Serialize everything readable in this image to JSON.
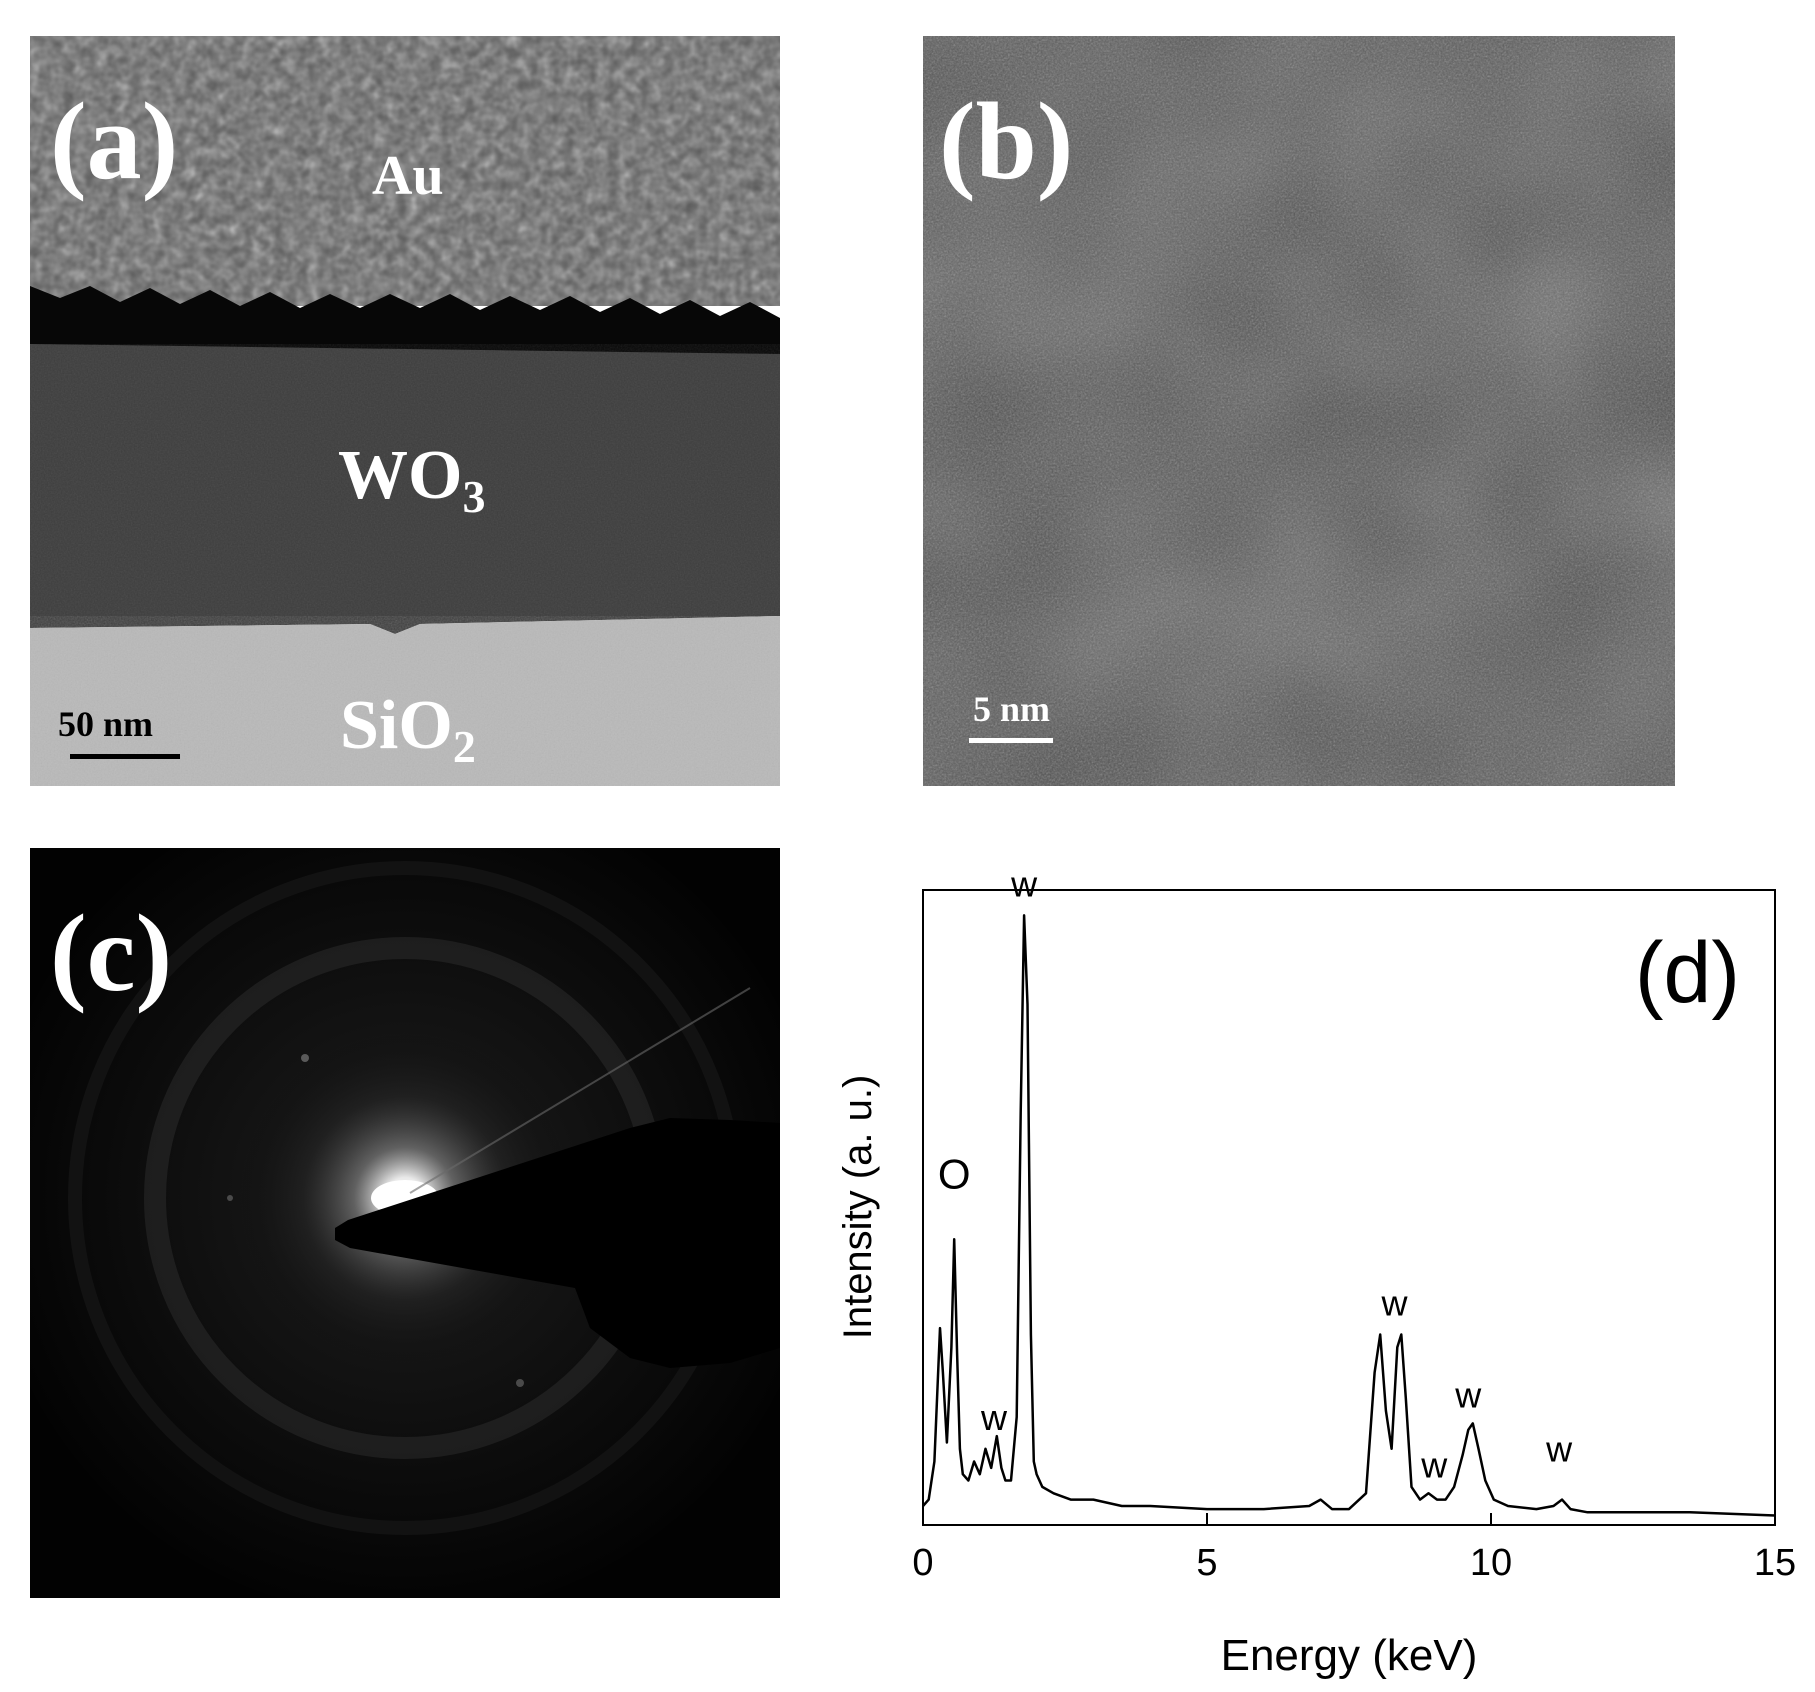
{
  "panels": {
    "a": {
      "label": "(a)",
      "layers": {
        "au": "Au",
        "wo3": "WO",
        "wo3_sub": "3",
        "sio2": "SiO",
        "sio2_sub": "2"
      },
      "scale_bar": "50 nm"
    },
    "b": {
      "label": "(b)",
      "scale_bar": "5 nm"
    },
    "c": {
      "label": "(c)"
    },
    "d": {
      "label": "(d)"
    }
  },
  "chart_data": {
    "type": "line",
    "xlabel": "Energy (keV)",
    "ylabel": "Intensity (a. u.)",
    "xlim": [
      0,
      15
    ],
    "xticks": [
      0,
      5,
      10,
      15
    ],
    "ylim": [
      0,
      100
    ],
    "yticks_shown": false,
    "series": [
      {
        "color": "#000000",
        "x": [
          0.0,
          0.1,
          0.2,
          0.3,
          0.35,
          0.42,
          0.5,
          0.55,
          0.6,
          0.65,
          0.7,
          0.8,
          0.9,
          1.0,
          1.1,
          1.2,
          1.3,
          1.38,
          1.45,
          1.55,
          1.65,
          1.72,
          1.78,
          1.84,
          1.9,
          1.95,
          2.0,
          2.1,
          2.3,
          2.6,
          3.0,
          3.5,
          4.0,
          5.0,
          6.0,
          6.8,
          7.0,
          7.2,
          7.5,
          7.8,
          7.95,
          8.05,
          8.15,
          8.25,
          8.35,
          8.42,
          8.5,
          8.6,
          8.75,
          8.9,
          9.05,
          9.2,
          9.35,
          9.5,
          9.6,
          9.68,
          9.78,
          9.9,
          10.05,
          10.3,
          10.8,
          11.1,
          11.25,
          11.4,
          11.7,
          12.5,
          13.5,
          15.0
        ],
        "y": [
          3,
          4,
          10,
          31,
          24,
          13,
          28,
          45,
          27,
          12,
          8,
          7,
          10,
          8,
          12,
          9,
          14,
          9,
          7,
          7,
          17,
          65,
          96,
          82,
          30,
          10,
          8,
          6,
          5,
          4,
          4,
          3,
          3,
          2.5,
          2.5,
          3,
          4,
          2.5,
          2.5,
          5,
          24,
          30,
          18,
          12,
          28,
          30,
          20,
          6,
          4,
          5,
          4,
          4,
          6,
          11,
          15,
          16,
          12,
          7,
          4,
          3,
          2.5,
          3,
          4,
          2.5,
          2,
          2,
          2,
          1.5
        ]
      }
    ],
    "annotations": [
      {
        "text": "O",
        "x": 0.55,
        "y": 53
      },
      {
        "text": "w",
        "x": 1.78,
        "y": 99
      },
      {
        "text": "w",
        "x": 1.25,
        "y": 15
      },
      {
        "text": "w",
        "x": 8.3,
        "y": 33
      },
      {
        "text": "w",
        "x": 9.0,
        "y": 7.5
      },
      {
        "text": "w",
        "x": 9.6,
        "y": 18.5
      },
      {
        "text": "w",
        "x": 11.2,
        "y": 10
      }
    ]
  }
}
